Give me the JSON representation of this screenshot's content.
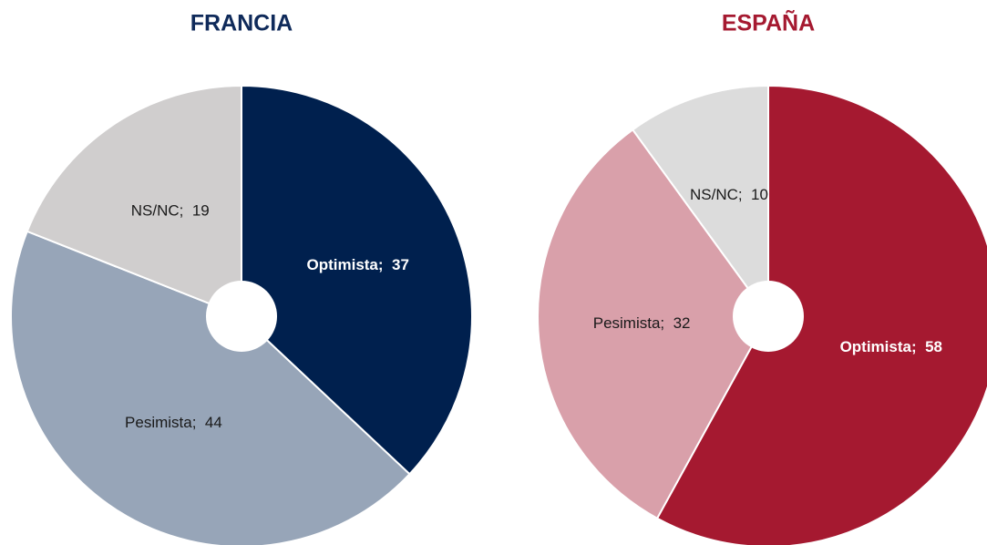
{
  "chart_data": [
    {
      "type": "pie",
      "title": "FRANCIA",
      "title_color": "#0f2a5a",
      "values": [
        37,
        44,
        19
      ],
      "value_labels": [
        "Optimista;  37",
        "Pesimista;  44",
        "NS/NC;  19"
      ],
      "colors": [
        "#00204e",
        "#97a5b8",
        "#d0cece"
      ]
    },
    {
      "type": "pie",
      "title": "ESPAÑA",
      "title_color": "#a51930",
      "values": [
        58,
        32,
        10
      ],
      "value_labels": [
        "Optimista;  58",
        "Pesimista;  32",
        "NS/NC;  10"
      ],
      "colors": [
        "#a51930",
        "#d9a0aa",
        "#dcdcdc"
      ]
    }
  ]
}
